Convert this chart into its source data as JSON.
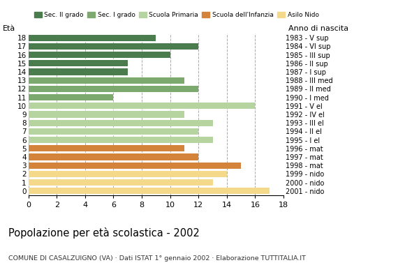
{
  "ages": [
    18,
    17,
    16,
    15,
    14,
    13,
    12,
    11,
    10,
    9,
    8,
    7,
    6,
    5,
    4,
    3,
    2,
    1,
    0
  ],
  "values": [
    9,
    12,
    10,
    7,
    7,
    11,
    12,
    6,
    16,
    11,
    13,
    12,
    13,
    11,
    12,
    15,
    14,
    13,
    17
  ],
  "anno_nascita": [
    "1983 - V sup",
    "1984 - VI sup",
    "1985 - III sup",
    "1986 - II sup",
    "1987 - I sup",
    "1988 - III med",
    "1989 - II med",
    "1990 - I med",
    "1991 - V el",
    "1992 - IV el",
    "1993 - III el",
    "1994 - II el",
    "1995 - I el",
    "1996 - mat",
    "1997 - mat",
    "1998 - mat",
    "1999 - nido",
    "2000 - nido",
    "2001 - nido"
  ],
  "age_colors": {
    "18": "#4a7c4e",
    "17": "#4a7c4e",
    "16": "#4a7c4e",
    "15": "#4a7c4e",
    "14": "#4a7c4e",
    "13": "#7caa6e",
    "12": "#7caa6e",
    "11": "#7caa6e",
    "10": "#b5d4a0",
    "9": "#b5d4a0",
    "8": "#b5d4a0",
    "7": "#b5d4a0",
    "6": "#b5d4a0",
    "5": "#d4833a",
    "4": "#d4833a",
    "3": "#d4833a",
    "2": "#f5d98a",
    "1": "#f5d98a",
    "0": "#f5d98a"
  },
  "title": "Popolazione per età scolastica - 2002",
  "subtitle": "COMUNE DI CASALZUIGNO (VA) · Dati ISTAT 1° gennaio 2002 · Elaborazione TUTTITALIA.IT",
  "eta_label": "Età",
  "anno_label": "Anno di nascita",
  "xlim": [
    0,
    18
  ],
  "xticks": [
    0,
    2,
    4,
    6,
    8,
    10,
    12,
    14,
    16,
    18
  ],
  "bar_height": 0.75,
  "legend_labels": [
    "Sec. II grado",
    "Sec. I grado",
    "Scuola Primaria",
    "Scuola dell'Infanzia",
    "Asilo Nido"
  ],
  "legend_colors": [
    "#4a7c4e",
    "#7caa6e",
    "#b5d4a0",
    "#d4833a",
    "#f5d98a"
  ]
}
